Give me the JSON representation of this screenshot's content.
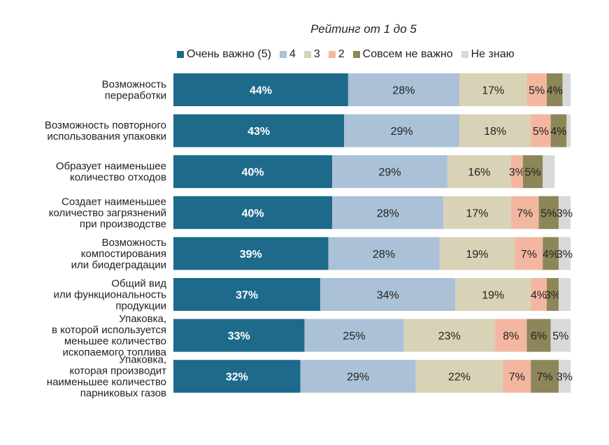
{
  "chart_data": {
    "type": "bar",
    "orientation": "horizontal",
    "stacked": true,
    "title": "Рейтинг от 1 до 5",
    "xlim": [
      0,
      100
    ],
    "legend_position": "top",
    "series": [
      {
        "name": "Очень важно (5)",
        "color": "#1e6a8b",
        "label_color": "#ffffff",
        "values": [
          44,
          43,
          40,
          40,
          39,
          37,
          33,
          32
        ]
      },
      {
        "name": "4",
        "color": "#abc1d7",
        "label_color": "#222222",
        "values": [
          28,
          29,
          29,
          28,
          28,
          34,
          25,
          29
        ]
      },
      {
        "name": "3",
        "color": "#d8d3b6",
        "label_color": "#222222",
        "values": [
          17,
          18,
          16,
          17,
          19,
          19,
          23,
          22
        ]
      },
      {
        "name": "2",
        "color": "#f3b7a1",
        "label_color": "#222222",
        "values": [
          5,
          5,
          3,
          7,
          7,
          4,
          8,
          7
        ]
      },
      {
        "name": "Совсем не важно",
        "color": "#8d8658",
        "label_color": "#222222",
        "values": [
          4,
          4,
          5,
          5,
          4,
          3,
          6,
          7
        ]
      },
      {
        "name": "Не знаю",
        "color": "#d9d9d9",
        "label_color": "#222222",
        "values": [
          2,
          1,
          3,
          3,
          3,
          3,
          5,
          3
        ]
      }
    ],
    "value_labels": [
      [
        "44%",
        "28%",
        "17%",
        "5%",
        "4%",
        ""
      ],
      [
        "43%",
        "29%",
        "18%",
        "5%",
        "4%",
        ""
      ],
      [
        "40%",
        "29%",
        "16%",
        "3%",
        "5%",
        ""
      ],
      [
        "40%",
        "28%",
        "17%",
        "7%",
        "5%",
        "3%"
      ],
      [
        "39%",
        "28%",
        "19%",
        "7%",
        "4%",
        "3%"
      ],
      [
        "37%",
        "34%",
        "19%",
        "4%",
        "3%",
        ""
      ],
      [
        "33%",
        "25%",
        "23%",
        "8%",
        "6%",
        "5%"
      ],
      [
        "32%",
        "29%",
        "22%",
        "7%",
        "7%",
        "3%"
      ]
    ],
    "categories": [
      [
        "Возможность",
        "переработки"
      ],
      [
        "Возможность повторного",
        "использования упаковки"
      ],
      [
        "Образует наименьшее",
        "количество отходов"
      ],
      [
        "Создает наименьшее",
        "количество загрязнений",
        "при производстве"
      ],
      [
        "Возможность",
        "компостирования",
        "или биодеградации"
      ],
      [
        "Общий вид",
        "или функциональность",
        "продукции"
      ],
      [
        "Упаковка,",
        "в которой используется",
        "меньшее количество",
        "ископаемого топлива"
      ],
      [
        "Упаковка,",
        "которая производит",
        "наименьшее количество",
        "парниковых газов"
      ]
    ]
  }
}
